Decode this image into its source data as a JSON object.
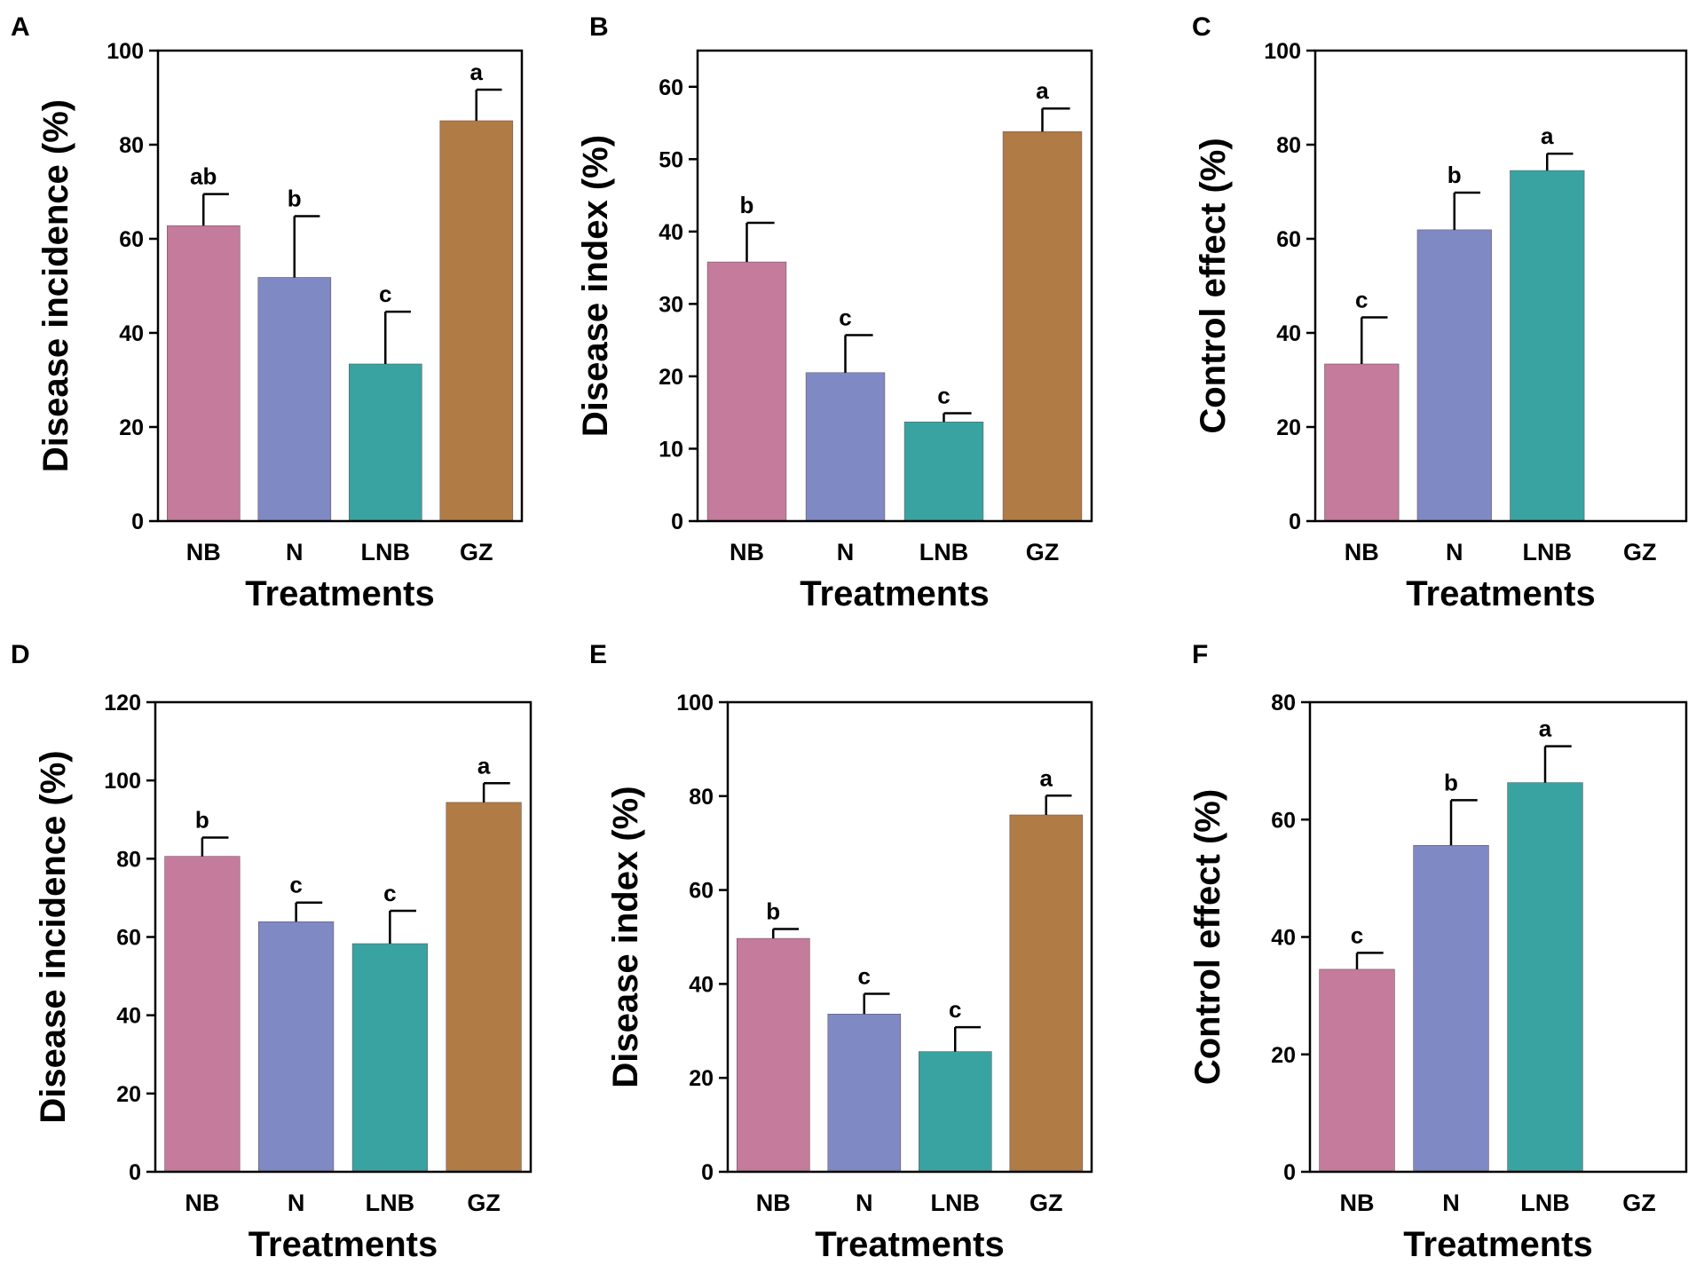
{
  "figure": {
    "colors": [
      "#c47b9c",
      "#7f89c3",
      "#39a3a1",
      "#b07b45"
    ]
  },
  "chart_data": [
    {
      "panel": "A",
      "type": "bar",
      "title": "",
      "xlabel": "Treatments",
      "ylabel": "Disease incidence (%)",
      "categories": [
        "NB",
        "N",
        "LNB",
        "GZ"
      ],
      "values": [
        62.8,
        51.8,
        33.4,
        85.1
      ],
      "errors": [
        6.7,
        13.0,
        11.1,
        6.6
      ],
      "labels": [
        "ab",
        "b",
        "c",
        "a"
      ],
      "ylim": [
        0,
        100
      ],
      "yticks": [
        0,
        20,
        40,
        60,
        80,
        100
      ],
      "grid": false
    },
    {
      "panel": "B",
      "type": "bar",
      "title": "",
      "xlabel": "Treatments",
      "ylabel": "Disease index (%)",
      "categories": [
        "NB",
        "N",
        "LNB",
        "GZ"
      ],
      "values": [
        35.8,
        20.5,
        13.7,
        53.8
      ],
      "errors": [
        5.4,
        5.2,
        1.2,
        3.2
      ],
      "labels": [
        "b",
        "c",
        "c",
        "a"
      ],
      "ylim": [
        0,
        65
      ],
      "yticks": [
        0,
        10,
        20,
        30,
        40,
        50,
        60
      ],
      "grid": false
    },
    {
      "panel": "C",
      "type": "bar",
      "title": "",
      "xlabel": "Treatments",
      "ylabel": "Control effect (%)",
      "categories": [
        "NB",
        "N",
        "LNB",
        "GZ"
      ],
      "values": [
        33.4,
        61.9,
        74.5,
        0
      ],
      "errors": [
        9.9,
        7.9,
        3.6,
        0
      ],
      "labels": [
        "c",
        "b",
        "a",
        ""
      ],
      "ylim": [
        0,
        100
      ],
      "yticks": [
        0,
        20,
        40,
        60,
        80,
        100
      ],
      "grid": false
    },
    {
      "panel": "D",
      "type": "bar",
      "title": "",
      "xlabel": "Treatments",
      "ylabel": "Disease incidence (%)",
      "categories": [
        "NB",
        "N",
        "LNB",
        "GZ"
      ],
      "values": [
        80.6,
        63.9,
        58.3,
        94.4
      ],
      "errors": [
        4.8,
        4.9,
        8.4,
        4.9
      ],
      "labels": [
        "b",
        "c",
        "c",
        "a"
      ],
      "ylim": [
        0,
        120
      ],
      "yticks": [
        0,
        20,
        40,
        60,
        80,
        100,
        120
      ],
      "grid": false
    },
    {
      "panel": "E",
      "type": "bar",
      "title": "",
      "xlabel": "Treatments",
      "ylabel": "Disease index (%)",
      "categories": [
        "NB",
        "N",
        "LNB",
        "GZ"
      ],
      "values": [
        49.7,
        33.6,
        25.6,
        76.0
      ],
      "errors": [
        2.0,
        4.3,
        5.2,
        4.1
      ],
      "labels": [
        "b",
        "c",
        "c",
        "a"
      ],
      "ylim": [
        0,
        100
      ],
      "yticks": [
        0,
        20,
        40,
        60,
        80,
        100
      ],
      "grid": false
    },
    {
      "panel": "F",
      "type": "bar",
      "title": "",
      "xlabel": "Treatments",
      "ylabel": "Control effect (%)",
      "categories": [
        "NB",
        "N",
        "LNB",
        "GZ"
      ],
      "values": [
        34.5,
        55.6,
        66.3,
        0
      ],
      "errors": [
        2.8,
        7.7,
        6.2,
        0
      ],
      "labels": [
        "c",
        "b",
        "a",
        ""
      ],
      "ylim": [
        0,
        80
      ],
      "yticks": [
        0,
        20,
        40,
        60,
        80
      ],
      "grid": false
    }
  ]
}
